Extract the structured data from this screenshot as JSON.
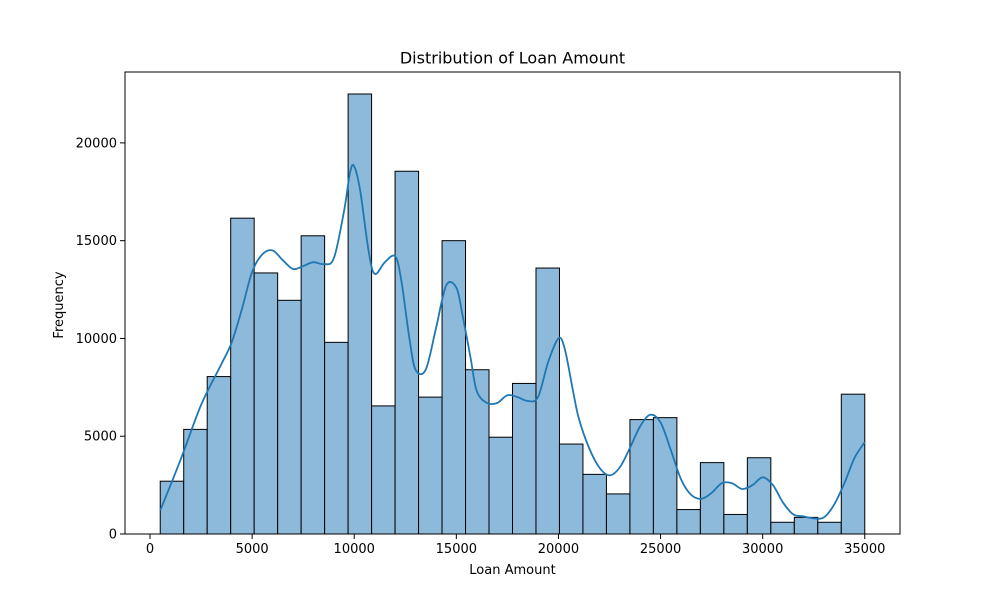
{
  "chart_data": {
    "type": "bar",
    "title": "Distribution of Loan Amount",
    "xlabel": "Loan Amount",
    "ylabel": "Frequency",
    "xlim": [
      -1225,
      36725
    ],
    "ylim": [
      0,
      23625
    ],
    "xticks": [
      0,
      5000,
      10000,
      15000,
      20000,
      25000,
      30000,
      35000
    ],
    "yticks": [
      0,
      5000,
      10000,
      15000,
      20000
    ],
    "bin_start": 500,
    "bin_width": 1150,
    "bin_counts": [
      2700,
      5350,
      8050,
      16150,
      13350,
      11950,
      15250,
      9800,
      22500,
      6550,
      18550,
      7000,
      15000,
      8400,
      4950,
      7700,
      13600,
      4600,
      3050,
      2050,
      5850,
      5950,
      1250,
      3650,
      1000,
      3900,
      600,
      850,
      600,
      7150
    ],
    "kde_x": [
      500,
      1500,
      2500,
      3500,
      4000,
      4500,
      5000,
      5500,
      6000,
      6500,
      7000,
      7500,
      8000,
      8500,
      9000,
      9500,
      9800,
      10000,
      10300,
      10700,
      11000,
      11500,
      12000,
      12300,
      12700,
      13000,
      13500,
      14000,
      14500,
      15000,
      15300,
      15700,
      16000,
      16500,
      17000,
      17500,
      18000,
      18500,
      19000,
      19500,
      20000,
      20300,
      20700,
      21000,
      21500,
      22000,
      22500,
      23000,
      23500,
      24000,
      24500,
      25000,
      25500,
      26000,
      26500,
      27000,
      27500,
      28000,
      28500,
      29000,
      29500,
      30000,
      30500,
      31000,
      31500,
      32000,
      32500,
      33000,
      33500,
      34000,
      34500,
      35000
    ],
    "kde_y": [
      1200,
      3800,
      6600,
      8700,
      9800,
      11500,
      13400,
      14300,
      14500,
      14000,
      13550,
      13700,
      13900,
      13800,
      14100,
      16500,
      18500,
      18800,
      17500,
      14500,
      13300,
      13900,
      14200,
      13000,
      10000,
      8400,
      8400,
      10500,
      12700,
      12600,
      11200,
      9000,
      7300,
      6700,
      6700,
      7100,
      7000,
      6800,
      7000,
      8800,
      10000,
      9500,
      7400,
      5900,
      4400,
      3400,
      3000,
      3400,
      4400,
      5500,
      6100,
      5700,
      4300,
      2800,
      2000,
      1800,
      2100,
      2600,
      2600,
      2300,
      2500,
      2900,
      2500,
      1600,
      1000,
      900,
      800,
      850,
      1500,
      2600,
      3900,
      4700
    ],
    "bar_color": "#8db9da",
    "bar_edge": "#000000",
    "kde_color": "#1f77b4",
    "grid": false,
    "legend": "none"
  }
}
